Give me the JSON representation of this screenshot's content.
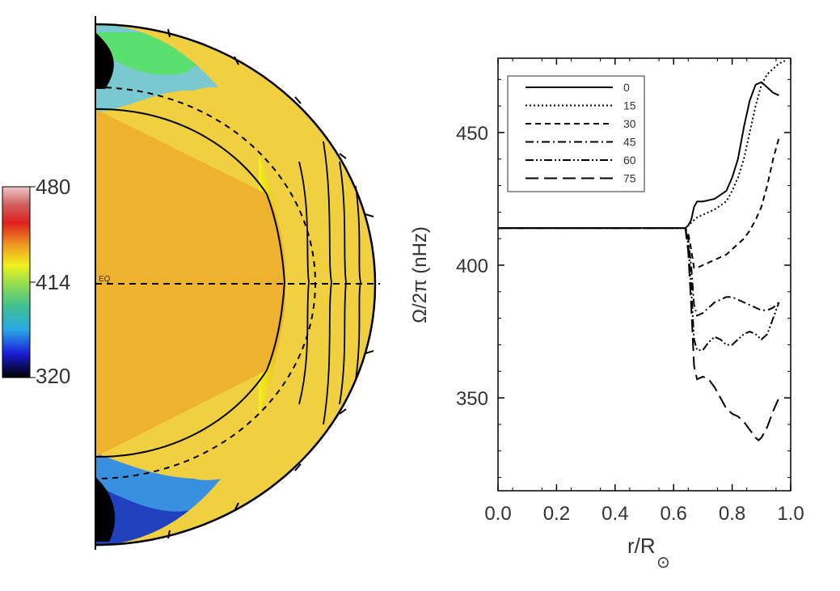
{
  "colorbar": {
    "max_label": "480",
    "mid_label": "414",
    "min_label": "320",
    "stops": [
      {
        "value": 320,
        "color": "#000000"
      },
      {
        "value": 340,
        "color": "#1b1bd6"
      },
      {
        "value": 360,
        "color": "#2aa8e8"
      },
      {
        "value": 380,
        "color": "#40c090"
      },
      {
        "value": 400,
        "color": "#9be04a"
      },
      {
        "value": 414,
        "color": "#f0f020"
      },
      {
        "value": 430,
        "color": "#f0a020"
      },
      {
        "value": 450,
        "color": "#e02020"
      },
      {
        "value": 465,
        "color": "#d06060"
      },
      {
        "value": 480,
        "color": "#f0c8c8"
      }
    ]
  },
  "meridional_map": {
    "equator_label": "EQ",
    "core_color": "#EEB22E",
    "outline_color": "#000000"
  },
  "chart_data": {
    "type": "line",
    "xlabel_main": "r/R",
    "xlabel_symbol": "⊙",
    "ylabel": "Ω/2π (nHz)",
    "xlim": [
      0.0,
      1.0
    ],
    "ylim": [
      315,
      478
    ],
    "xticks": [
      "0.0",
      "0.2",
      "0.4",
      "0.6",
      "0.8",
      "1.0"
    ],
    "yticks": [
      "350",
      "400",
      "450"
    ],
    "legend_position": "top-left",
    "series": [
      {
        "name": "0",
        "dash": "solid",
        "x": [
          0.0,
          0.64,
          0.65,
          0.66,
          0.67,
          0.68,
          0.7,
          0.74,
          0.78,
          0.8,
          0.82,
          0.84,
          0.86,
          0.88,
          0.9,
          0.92,
          0.94,
          0.96
        ],
        "y": [
          414,
          414,
          415,
          417,
          422,
          424,
          424,
          425,
          428,
          433,
          440,
          452,
          462,
          468,
          469,
          467,
          465,
          464
        ]
      },
      {
        "name": "15",
        "dash": "dotted",
        "x": [
          0.0,
          0.64,
          0.66,
          0.68,
          0.7,
          0.74,
          0.78,
          0.8,
          0.82,
          0.84,
          0.86,
          0.88,
          0.9,
          0.92,
          0.94,
          0.96,
          0.98
        ],
        "y": [
          414,
          414,
          416,
          418,
          419,
          421,
          424,
          428,
          433,
          440,
          450,
          460,
          468,
          472,
          474,
          476,
          477
        ]
      },
      {
        "name": "30",
        "dash": "dashed",
        "x": [
          0.0,
          0.64,
          0.65,
          0.66,
          0.67,
          0.68,
          0.7,
          0.74,
          0.78,
          0.8,
          0.82,
          0.84,
          0.86,
          0.88,
          0.9,
          0.92,
          0.94,
          0.96
        ],
        "y": [
          414,
          414,
          412,
          406,
          399,
          399,
          400,
          402,
          404,
          406,
          408,
          410,
          413,
          417,
          422,
          430,
          440,
          448
        ]
      },
      {
        "name": "45",
        "dash": "dashdot",
        "x": [
          0.0,
          0.64,
          0.65,
          0.66,
          0.67,
          0.68,
          0.7,
          0.72,
          0.74,
          0.76,
          0.78,
          0.8,
          0.82,
          0.84,
          0.86,
          0.88,
          0.9,
          0.92,
          0.94,
          0.96
        ],
        "y": [
          414,
          414,
          410,
          400,
          385,
          381,
          382,
          384,
          386,
          387,
          388,
          388,
          387,
          386,
          385,
          384,
          383,
          383,
          384,
          386
        ]
      },
      {
        "name": "60",
        "dash": "dashdotdot",
        "x": [
          0.0,
          0.64,
          0.65,
          0.66,
          0.67,
          0.68,
          0.7,
          0.72,
          0.74,
          0.76,
          0.78,
          0.8,
          0.82,
          0.84,
          0.86,
          0.88,
          0.9,
          0.92,
          0.94,
          0.96
        ],
        "y": [
          414,
          414,
          408,
          392,
          372,
          368,
          368,
          371,
          373,
          372,
          370,
          370,
          372,
          374,
          375,
          374,
          372,
          374,
          380,
          386
        ]
      },
      {
        "name": "75",
        "dash": "longdash",
        "x": [
          0.0,
          0.64,
          0.65,
          0.66,
          0.67,
          0.68,
          0.7,
          0.72,
          0.74,
          0.76,
          0.78,
          0.8,
          0.82,
          0.84,
          0.86,
          0.88,
          0.89,
          0.9,
          0.92,
          0.94,
          0.96
        ],
        "y": [
          414,
          414,
          405,
          385,
          362,
          357,
          358,
          357,
          354,
          350,
          346,
          344,
          343,
          341,
          338,
          335,
          334,
          335,
          339,
          345,
          350
        ]
      }
    ]
  }
}
